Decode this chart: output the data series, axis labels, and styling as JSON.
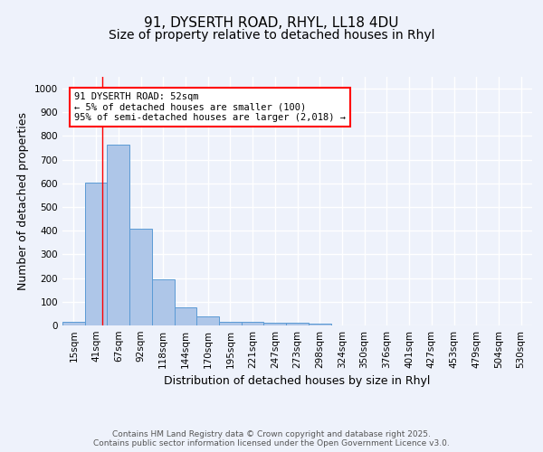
{
  "title_line1": "91, DYSERTH ROAD, RHYL, LL18 4DU",
  "title_line2": "Size of property relative to detached houses in Rhyl",
  "xlabel": "Distribution of detached houses by size in Rhyl",
  "ylabel": "Number of detached properties",
  "bin_labels": [
    "15sqm",
    "41sqm",
    "67sqm",
    "92sqm",
    "118sqm",
    "144sqm",
    "170sqm",
    "195sqm",
    "221sqm",
    "247sqm",
    "273sqm",
    "298sqm",
    "324sqm",
    "350sqm",
    "376sqm",
    "401sqm",
    "427sqm",
    "453sqm",
    "479sqm",
    "504sqm",
    "530sqm"
  ],
  "bar_values": [
    15,
    605,
    765,
    410,
    193,
    75,
    37,
    17,
    15,
    12,
    13,
    7,
    0,
    0,
    0,
    0,
    0,
    0,
    0,
    0,
    0
  ],
  "bar_color": "#aec6e8",
  "bar_edge_color": "#5b9bd5",
  "background_color": "#eef2fb",
  "grid_color": "#ffffff",
  "ylim": [
    0,
    1050
  ],
  "yticks": [
    0,
    100,
    200,
    300,
    400,
    500,
    600,
    700,
    800,
    900,
    1000
  ],
  "red_line_x": 1.3,
  "annotation_text": "91 DYSERTH ROAD: 52sqm\n← 5% of detached houses are smaller (100)\n95% of semi-detached houses are larger (2,018) →",
  "footer_text": "Contains HM Land Registry data © Crown copyright and database right 2025.\nContains public sector information licensed under the Open Government Licence v3.0.",
  "title_fontsize": 11,
  "title2_fontsize": 10,
  "label_fontsize": 9,
  "tick_fontsize": 7.5,
  "annot_fontsize": 7.5,
  "footer_fontsize": 6.5
}
